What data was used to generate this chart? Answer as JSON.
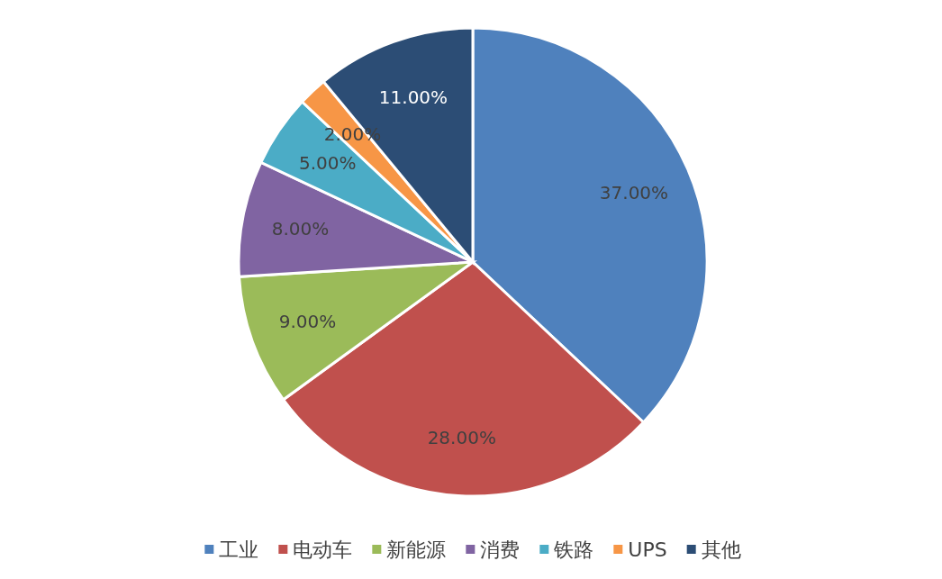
{
  "chart_data": {
    "type": "pie",
    "categories": [
      "工业",
      "电动车",
      "新能源",
      "消费",
      "铁路",
      "UPS",
      "其他"
    ],
    "values": [
      37,
      28,
      9,
      8,
      5,
      2,
      11
    ],
    "value_labels": [
      "37.00%",
      "28.00%",
      "9.00%",
      "8.00%",
      "5.00%",
      "2.00%",
      "11.00%"
    ],
    "colors": [
      "#4f81bd",
      "#c0504d",
      "#9bbb59",
      "#8064a2",
      "#4bacc6",
      "#f79646",
      "#2c4d75"
    ],
    "legend": "bottom"
  }
}
